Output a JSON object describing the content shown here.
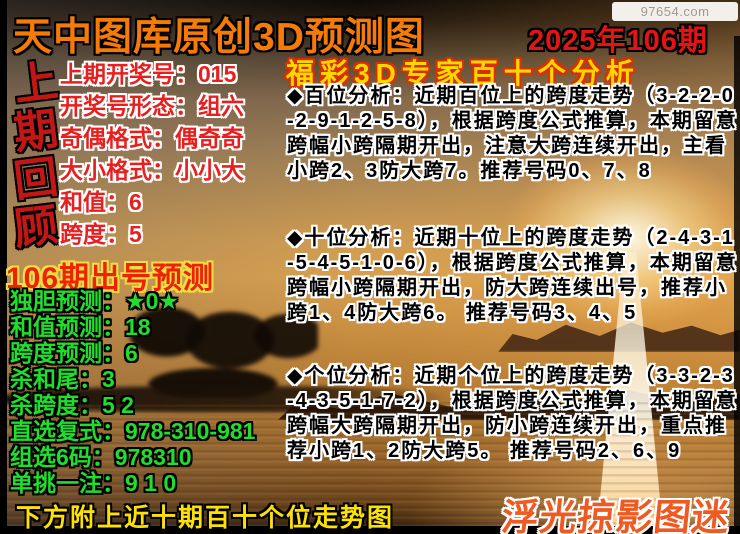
{
  "badge": {
    "text": "97654.com"
  },
  "header": {
    "title": "天中图库原创3D预测图",
    "issue": "2025年106期"
  },
  "review": {
    "vertical_title": {
      "chars": [
        "上",
        "期",
        "回",
        "顾"
      ]
    },
    "lines": [
      "上期开奖号：015",
      "开奖号形态：组六",
      "奇偶格式：偶奇奇",
      "大小格式：小小大",
      "和值：6",
      "跨度：5"
    ]
  },
  "prediction": {
    "title": "106期出号预测",
    "lines": [
      "独胆预测：★0★",
      "和值预测：18",
      "跨度预测：6",
      "杀和尾：3",
      "杀跨度：5 2",
      "直选复式：978-310-981",
      "组选6码：978310",
      "单挑一注：9 1 0"
    ]
  },
  "analysis": {
    "title": "福彩3D专家百十个分析",
    "paragraphs": [
      "◆百位分析：近期百位上的跨度走势（3-2-2-0-2-9-1-2-5-8），根据跨度公式推算，本期留意跨幅小跨隔期开出，注意大跨连续开出，主看小跨2、3防大跨7。推荐号码0、7、8",
      "◆十位分析：近期十位上的跨度走势（2-4-3-1-5-4-5-1-0-6），根据跨度公式推算，本期留意跨幅小跨隔期开出，防大跨连续出号，推荐小跨1、4防大跨6。 推荐号码3、4、5",
      "◆个位分析：近期个位上的跨度走势（3-3-2-3-4-3-5-1-7-2），根据跨度公式推算，本期留意跨幅大跨隔期开出，防小跨连续开出，重点推荐小跨1、2防大跨5。 推荐号码2、6、9"
    ]
  },
  "footer": {
    "note": "下方附上近十期百十个位走势图",
    "watermark": "浮光掠影图迷"
  },
  "colors": {
    "title_orange": "#f57a06",
    "issue_red": "#e41414",
    "review_red": "#e81f1f",
    "prediction_green": "#21dd2e",
    "analysis_yellow": "#ffd700",
    "note_yellow": "#ffe100",
    "watermark_orange": "#ee5a22"
  }
}
